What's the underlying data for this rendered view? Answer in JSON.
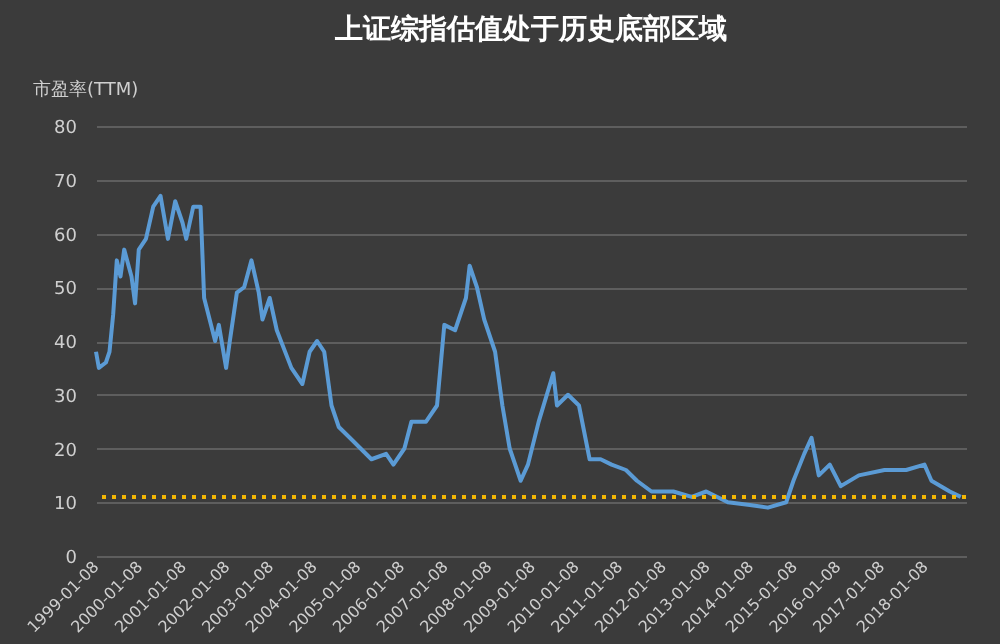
{
  "chart_data": {
    "type": "line",
    "title": "上证综指估值处于历史底部区域",
    "ylabel": "市盈率(TTM)",
    "x": [
      "1999-01-08",
      "1999-02",
      "1999-04",
      "1999-05",
      "1999-06",
      "1999-07",
      "1999-08",
      "1999-09",
      "1999-11",
      "1999-12",
      "2000-01",
      "2000-03",
      "2000-05",
      "2000-07",
      "2000-09",
      "2000-11",
      "2001-01",
      "2001-02",
      "2001-04",
      "2001-06",
      "2001-07",
      "2001-10",
      "2001-11",
      "2002-01",
      "2002-02",
      "2002-04",
      "2002-06",
      "2002-08",
      "2002-10",
      "2002-11",
      "2003-01",
      "2003-03",
      "2003-07",
      "2003-10",
      "2003-12",
      "2004-02",
      "2004-04",
      "2004-06",
      "2004-08",
      "2004-11",
      "2005-05",
      "2005-09",
      "2005-11",
      "2006-02",
      "2006-04",
      "2006-08",
      "2006-11",
      "2007-01",
      "2007-04",
      "2007-07",
      "2007-08",
      "2007-10",
      "2007-12",
      "2008-03",
      "2008-05",
      "2008-07",
      "2008-10",
      "2008-12",
      "2009-03",
      "2009-07",
      "2009-08",
      "2009-11",
      "2010-02",
      "2010-05",
      "2010-08",
      "2010-11",
      "2011-03",
      "2011-06",
      "2011-10",
      "2012-04",
      "2012-09",
      "2013-01",
      "2013-07",
      "2014-01",
      "2014-06",
      "2014-11",
      "2015-01",
      "2015-04",
      "2015-06",
      "2015-08",
      "2015-11",
      "2016-02",
      "2016-07",
      "2017-02",
      "2017-08",
      "2018-01",
      "2018-03",
      "2018-08",
      "2018-11"
    ],
    "series": [
      {
        "color": "#5b9bd5",
        "values": [
          38,
          35,
          36,
          38,
          45,
          55,
          52,
          57,
          52,
          47,
          57,
          59,
          65,
          67,
          59,
          66,
          62,
          59,
          65,
          65,
          48,
          40,
          43,
          35,
          40,
          49,
          50,
          55,
          49,
          44,
          48,
          42,
          35,
          32,
          38,
          40,
          38,
          28,
          24,
          22,
          18,
          19,
          17,
          20,
          25,
          25,
          28,
          43,
          42,
          48,
          54,
          50,
          44,
          38,
          28,
          20,
          14,
          17,
          25,
          34,
          28,
          30,
          28,
          18,
          18,
          17,
          16,
          14,
          12,
          12,
          11,
          12,
          10,
          9.5,
          9,
          10,
          14,
          19,
          22,
          15,
          17,
          13,
          15,
          16,
          16,
          17,
          14,
          12,
          11
        ]
      }
    ],
    "xlim": [
      "1999-01-08",
      "2018-12-15"
    ],
    "xticks": [
      "1999-01-08",
      "2000-01-08",
      "2001-01-08",
      "2002-01-08",
      "2003-01-08",
      "2004-01-08",
      "2005-01-08",
      "2006-01-08",
      "2007-01-08",
      "2008-01-08",
      "2009-01-08",
      "2010-01-08",
      "2011-01-08",
      "2012-01-08",
      "2013-01-08",
      "2014-01-08",
      "2015-01-08",
      "2016-01-08",
      "2017-01-08",
      "2018-01-08"
    ],
    "ylim": [
      0,
      80
    ],
    "yticks": [
      0,
      10,
      20,
      30,
      40,
      50,
      60,
      70,
      80
    ],
    "grid": "y",
    "ref_lines": [
      {
        "axis": "y",
        "value": 11,
        "color": "#f2b705",
        "line_style": "dotted"
      }
    ]
  }
}
